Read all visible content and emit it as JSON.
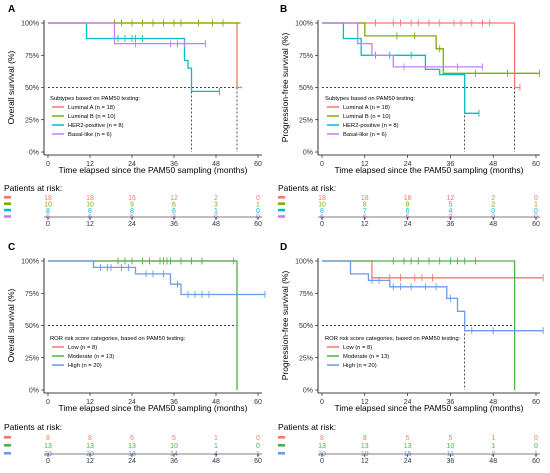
{
  "chart_data": [
    {
      "type": "line",
      "panel_label": "A",
      "xlabel": "Time elapsed since the PAM50 sampling (months)",
      "ylabel": "Overall survival (%)",
      "xlim": [
        0,
        60
      ],
      "ylim": [
        0,
        100
      ],
      "xticks": [
        "0",
        "12",
        "24",
        "36",
        "48",
        "60"
      ],
      "yticks": [
        "0%",
        "25%",
        "50%",
        "75%",
        "100%"
      ],
      "median_reference": 50,
      "legend_title": "Subtypes based on PAM50 testing:",
      "legend_position": "bottom-left",
      "series": [
        {
          "name": "Luminal A (n = 18)",
          "color": "#F8766D",
          "x": [
            0,
            54,
            54,
            55.5
          ],
          "y": [
            100,
            100,
            50,
            50
          ],
          "censor_x": [],
          "median_x": 54
        },
        {
          "name": "Luminal B (n = 10)",
          "color": "#7CAE00",
          "x": [
            0,
            55
          ],
          "y": [
            100,
            100
          ],
          "censor_x": [
            19,
            21,
            24,
            27,
            30,
            33,
            36,
            38,
            43,
            47,
            50
          ]
        },
        {
          "name": "HER2-positive (n = 8)",
          "color": "#00BFC4",
          "x": [
            0,
            11,
            11,
            28,
            28,
            39,
            39,
            40,
            40,
            41,
            41,
            49
          ],
          "y": [
            100,
            100,
            88,
            88,
            88,
            88,
            71,
            71,
            65,
            65,
            47,
            47
          ],
          "censor_x": [
            20,
            22,
            24,
            25,
            27,
            49
          ],
          "median_x": 41
        },
        {
          "name": "Basal-like (n = 6)",
          "color": "#C77CFF",
          "x": [
            0,
            19,
            19,
            45
          ],
          "y": [
            100,
            100,
            84,
            84
          ],
          "censor_x": [
            25,
            35,
            37,
            39,
            45
          ]
        }
      ],
      "risk_table": {
        "title": "Patients at risk:",
        "times": [
          "0",
          "12",
          "24",
          "36",
          "48",
          "60"
        ],
        "rows": [
          {
            "color": "#F8766D",
            "values": [
              "18",
              "18",
              "16",
              "12",
              "2",
              "0"
            ]
          },
          {
            "color": "#7CAE00",
            "values": [
              "10",
              "10",
              "9",
              "6",
              "3",
              "1"
            ]
          },
          {
            "color": "#00BFC4",
            "values": [
              "8",
              "8",
              "8",
              "6",
              "1",
              "0"
            ]
          },
          {
            "color": "#C77CFF",
            "values": [
              "6",
              "6",
              "5",
              "3",
              "0",
              "0"
            ]
          }
        ]
      }
    },
    {
      "type": "line",
      "panel_label": "B",
      "xlabel": "Time elapsed since the PAM50 sampling (months)",
      "ylabel": "Progression-free survival (%)",
      "xlim": [
        0,
        60
      ],
      "ylim": [
        0,
        100
      ],
      "xticks": [
        "0",
        "12",
        "24",
        "36",
        "48",
        "60"
      ],
      "yticks": [
        "0%",
        "25%",
        "50%",
        "75%",
        "100%"
      ],
      "median_reference": 50,
      "legend_title": "Subtypes based on PAM50 testing:",
      "legend_position": "bottom-left",
      "series": [
        {
          "name": "Luminal A (n = 18)",
          "color": "#F8766D",
          "x": [
            0,
            54,
            54,
            55.5
          ],
          "y": [
            100,
            100,
            50,
            50
          ],
          "censor_x": [
            15,
            20,
            22,
            25,
            27,
            30,
            33,
            37,
            39,
            42,
            45,
            47,
            55.5
          ],
          "median_x": 54
        },
        {
          "name": "Luminal B (n = 10)",
          "color": "#7CAE00",
          "x": [
            0,
            12,
            12,
            32,
            32,
            34,
            34,
            61
          ],
          "y": [
            100,
            100,
            90,
            90,
            80,
            80,
            61,
            61
          ],
          "censor_x": [
            21,
            26,
            33,
            43,
            52,
            61
          ]
        },
        {
          "name": "HER2-positive (n = 8)",
          "color": "#00BFC4",
          "x": [
            0,
            6,
            6,
            11,
            11,
            29,
            29,
            33,
            33,
            40,
            40,
            44
          ],
          "y": [
            100,
            100,
            88,
            88,
            75,
            75,
            64,
            64,
            60,
            60,
            30,
            30
          ],
          "censor_x": [
            15,
            19,
            25,
            44
          ],
          "median_x": 40
        },
        {
          "name": "Basal-like (n = 6)",
          "color": "#C77CFF",
          "x": [
            0,
            10,
            10,
            14,
            14,
            20,
            20,
            45
          ],
          "y": [
            100,
            100,
            84,
            84,
            75,
            75,
            66,
            66
          ],
          "censor_x": [
            23,
            38,
            45
          ]
        }
      ],
      "risk_table": {
        "title": "Patients at risk:",
        "times": [
          "0",
          "12",
          "24",
          "36",
          "48",
          "60"
        ],
        "rows": [
          {
            "color": "#F8766D",
            "values": [
              "18",
              "18",
              "16",
              "12",
              "2",
              "0"
            ]
          },
          {
            "color": "#7CAE00",
            "values": [
              "10",
              "8",
              "8",
              "5",
              "2",
              "1"
            ]
          },
          {
            "color": "#00BFC4",
            "values": [
              "8",
              "7",
              "6",
              "4",
              "0",
              "0"
            ]
          },
          {
            "color": "#C77CFF",
            "values": [
              "6",
              "6",
              "5",
              "3",
              "0",
              "0"
            ]
          }
        ]
      }
    },
    {
      "type": "line",
      "panel_label": "C",
      "xlabel": "Time elapsed since the PAM50 sampling (months)",
      "ylabel": "Overall survival (%)",
      "xlim": [
        0,
        60
      ],
      "ylim": [
        0,
        100
      ],
      "xticks": [
        "0",
        "12",
        "24",
        "36",
        "48",
        "60"
      ],
      "yticks": [
        "0%",
        "25%",
        "50%",
        "75%",
        "100%"
      ],
      "median_reference": 50,
      "legend_title": "ROR risk score categories, based on PAM50 testing:",
      "legend_position": "bottom-left",
      "series": [
        {
          "name": "Low (n = 8)",
          "color": "#F8766D",
          "x": [
            0,
            54
          ],
          "y": [
            100,
            100
          ],
          "censor_x": [
            53
          ]
        },
        {
          "name": "Moderate (n = 13)",
          "color": "#4DAF4A",
          "x": [
            0,
            54,
            54
          ],
          "y": [
            100,
            100,
            0
          ],
          "censor_x": [
            20,
            22,
            24,
            27,
            29,
            32,
            33,
            34,
            35,
            38,
            41,
            44
          ],
          "median_x": 54
        },
        {
          "name": "High (n = 20)",
          "color": "#6B9BEB",
          "x": [
            0,
            13,
            13,
            25,
            25,
            35,
            35,
            38,
            38,
            62
          ],
          "y": [
            100,
            100,
            95,
            95,
            90,
            90,
            82,
            82,
            74,
            74
          ],
          "censor_x": [
            15,
            17,
            18,
            21,
            23,
            28,
            30,
            33,
            37,
            40,
            42,
            44,
            46,
            62
          ]
        }
      ],
      "risk_table": {
        "title": "Patients at risk:",
        "times": [
          "0",
          "12",
          "24",
          "36",
          "48",
          "60"
        ],
        "rows": [
          {
            "color": "#F8766D",
            "values": [
              "8",
              "8",
              "6",
              "5",
              "1",
              "0"
            ]
          },
          {
            "color": "#4DAF4A",
            "values": [
              "13",
              "13",
              "13",
              "10",
              "1",
              "0"
            ]
          },
          {
            "color": "#6B9BEB",
            "values": [
              "20",
              "20",
              "18",
              "14",
              "4",
              "1"
            ]
          }
        ]
      }
    },
    {
      "type": "line",
      "panel_label": "D",
      "xlabel": "Time elapsed since the PAM50 sampling (months)",
      "ylabel": "Progression-free survival (%)",
      "xlim": [
        0,
        60
      ],
      "ylim": [
        0,
        100
      ],
      "xticks": [
        "0",
        "12",
        "24",
        "36",
        "48",
        "60"
      ],
      "yticks": [
        "0%",
        "25%",
        "50%",
        "75%",
        "100%"
      ],
      "median_reference": 50,
      "legend_title": "ROR risk score categories, based on PAM50 testing:",
      "legend_position": "bottom-left",
      "series": [
        {
          "name": "Low (n = 8)",
          "color": "#F8766D",
          "x": [
            0,
            14,
            14,
            62
          ],
          "y": [
            100,
            100,
            87,
            87
          ],
          "censor_x": [
            19,
            22,
            26,
            28,
            31,
            62
          ]
        },
        {
          "name": "Moderate (n = 13)",
          "color": "#4DAF4A",
          "x": [
            0,
            54,
            54
          ],
          "y": [
            100,
            100,
            0
          ],
          "censor_x": [
            20,
            23,
            25,
            27,
            30,
            33,
            36,
            38,
            40,
            43
          ],
          "median_x": 54
        },
        {
          "name": "High (n = 20)",
          "color": "#6B9BEB",
          "x": [
            0,
            8,
            8,
            13,
            13,
            19,
            19,
            35,
            35,
            38,
            38,
            40,
            40,
            62
          ],
          "y": [
            100,
            100,
            90,
            90,
            85,
            85,
            80,
            80,
            71,
            71,
            61,
            61,
            46,
            46
          ],
          "censor_x": [
            14,
            16,
            20,
            22,
            25,
            29,
            32,
            36,
            42,
            48,
            62
          ],
          "median_x": 40
        }
      ],
      "risk_table": {
        "title": "Patients at risk:",
        "times": [
          "0",
          "12",
          "24",
          "36",
          "48",
          "60"
        ],
        "rows": [
          {
            "color": "#F8766D",
            "values": [
              "8",
              "8",
              "5",
              "5",
              "1",
              "0"
            ]
          },
          {
            "color": "#4DAF4A",
            "values": [
              "13",
              "13",
              "13",
              "10",
              "1",
              "0"
            ]
          },
          {
            "color": "#6B9BEB",
            "values": [
              "20",
              "19",
              "15",
              "11",
              "2",
              "1"
            ]
          }
        ]
      }
    }
  ]
}
